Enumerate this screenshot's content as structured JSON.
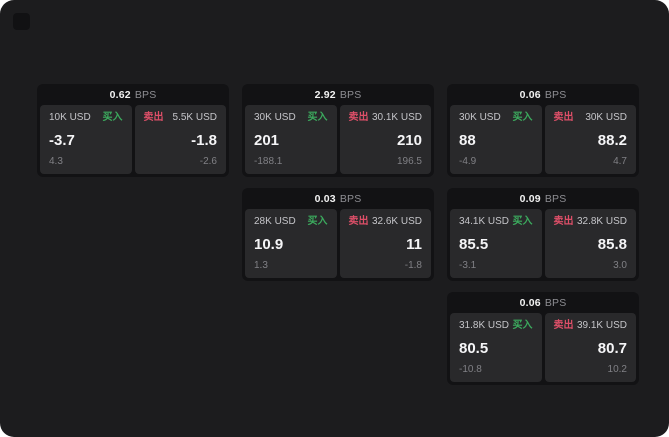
{
  "labels": {
    "bps_unit": "BPS",
    "buy": "买入",
    "sell": "卖出"
  },
  "colors": {
    "window_background": "#1c1c1e",
    "card_background": "#121214",
    "panel_background": "#29292b",
    "buy_green": "#3cab5e",
    "sell_red": "#dd4f68"
  },
  "cards": [
    {
      "col": 1,
      "row": 1,
      "bps": "0.62",
      "buy": {
        "amount": "10K USD",
        "value": "-3.7",
        "sub_value": "4.3"
      },
      "sell": {
        "amount": "5.5K USD",
        "value": "-1.8",
        "sub_value": "-2.6"
      }
    },
    {
      "col": 2,
      "row": 1,
      "bps": "2.92",
      "buy": {
        "amount": "30K USD",
        "value": "201",
        "sub_value": "-188.1"
      },
      "sell": {
        "amount": "30.1K USD",
        "value": "210",
        "sub_value": "196.5"
      }
    },
    {
      "col": 3,
      "row": 1,
      "bps": "0.06",
      "buy": {
        "amount": "30K USD",
        "value": "88",
        "sub_value": "-4.9"
      },
      "sell": {
        "amount": "30K USD",
        "value": "88.2",
        "sub_value": "4.7"
      }
    },
    {
      "col": 2,
      "row": 2,
      "bps": "0.03",
      "buy": {
        "amount": "28K USD",
        "value": "10.9",
        "sub_value": "1.3"
      },
      "sell": {
        "amount": "32.6K USD",
        "value": "11",
        "sub_value": "-1.8"
      }
    },
    {
      "col": 3,
      "row": 2,
      "bps": "0.09",
      "buy": {
        "amount": "34.1K USD",
        "value": "85.5",
        "sub_value": "-3.1"
      },
      "sell": {
        "amount": "32.8K USD",
        "value": "85.8",
        "sub_value": "3.0"
      }
    },
    {
      "col": 3,
      "row": 3,
      "bps": "0.06",
      "buy": {
        "amount": "31.8K USD",
        "value": "80.5",
        "sub_value": "-10.8"
      },
      "sell": {
        "amount": "39.1K USD",
        "value": "80.7",
        "sub_value": "10.2"
      }
    }
  ]
}
